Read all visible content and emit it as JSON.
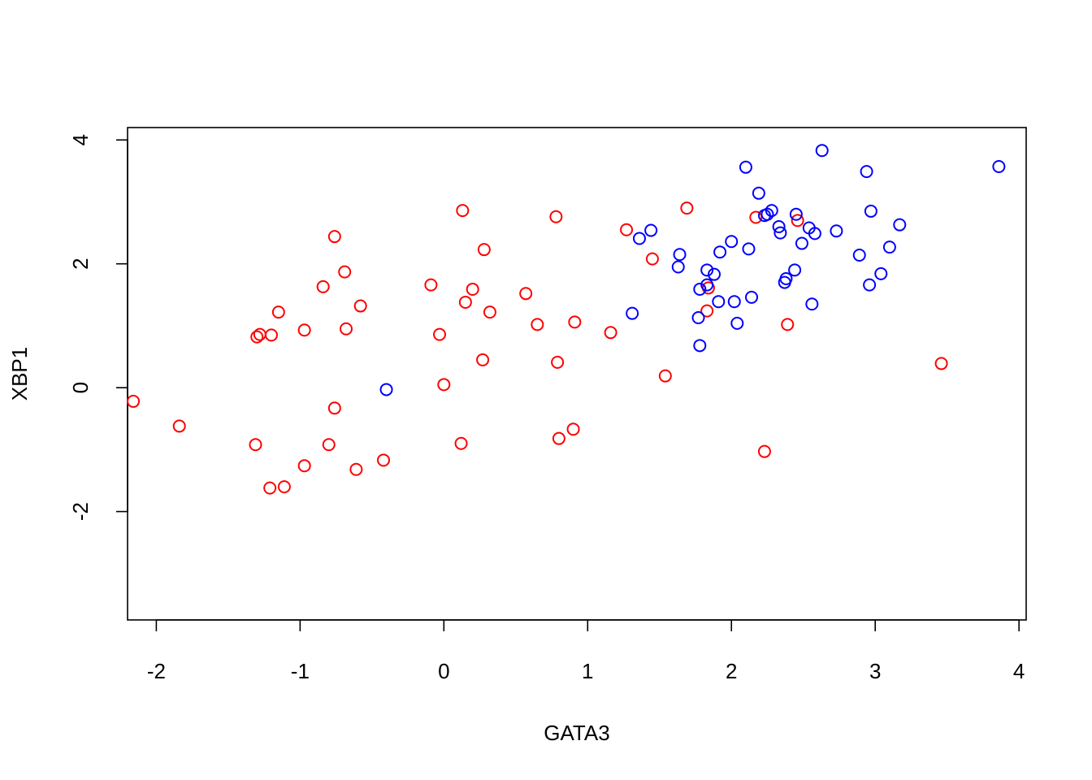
{
  "chart_data": {
    "type": "scatter",
    "title": "",
    "xlabel": "GATA3",
    "ylabel": "XBP1",
    "xlim": [
      -2.2,
      4.05
    ],
    "ylim": [
      -3.75,
      4.2
    ],
    "x_ticks": [
      -2,
      -1,
      0,
      1,
      2,
      3,
      4
    ],
    "y_ticks": [
      -2,
      0,
      2,
      4
    ],
    "grid": false,
    "legend": "none",
    "colors": {
      "red": "#ff0000",
      "blue": "#0000ff"
    },
    "series": [
      {
        "color": "#ff0000",
        "points": [
          [
            -2.16,
            -0.22
          ],
          [
            -1.84,
            -0.62
          ],
          [
            -1.31,
            -0.92
          ],
          [
            -1.3,
            0.82
          ],
          [
            -1.28,
            0.86
          ],
          [
            -1.21,
            -1.62
          ],
          [
            -1.2,
            0.85
          ],
          [
            -1.15,
            1.22
          ],
          [
            -1.11,
            -1.6
          ],
          [
            -0.97,
            0.93
          ],
          [
            -0.97,
            -1.26
          ],
          [
            -0.84,
            1.63
          ],
          [
            -0.8,
            -0.92
          ],
          [
            -0.76,
            2.44
          ],
          [
            -0.76,
            -0.33
          ],
          [
            -0.69,
            1.87
          ],
          [
            -0.68,
            0.95
          ],
          [
            -0.61,
            -1.32
          ],
          [
            -0.58,
            1.32
          ],
          [
            -0.42,
            -1.17
          ],
          [
            -0.09,
            1.66
          ],
          [
            -0.03,
            0.86
          ],
          [
            0.0,
            0.05
          ],
          [
            0.12,
            -0.9
          ],
          [
            0.13,
            2.86
          ],
          [
            0.15,
            1.38
          ],
          [
            0.2,
            1.59
          ],
          [
            0.27,
            0.45
          ],
          [
            0.28,
            2.23
          ],
          [
            0.32,
            1.22
          ],
          [
            0.57,
            1.52
          ],
          [
            0.65,
            1.02
          ],
          [
            0.78,
            2.76
          ],
          [
            0.79,
            0.41
          ],
          [
            0.8,
            -0.82
          ],
          [
            0.9,
            -0.67
          ],
          [
            0.91,
            1.06
          ],
          [
            1.16,
            0.89
          ],
          [
            1.27,
            2.55
          ],
          [
            1.45,
            2.08
          ],
          [
            1.54,
            0.19
          ],
          [
            1.69,
            2.9
          ],
          [
            1.83,
            1.24
          ],
          [
            1.84,
            1.61
          ],
          [
            2.17,
            2.75
          ],
          [
            2.23,
            -1.03
          ],
          [
            2.39,
            1.02
          ],
          [
            2.46,
            2.7
          ],
          [
            3.46,
            0.39
          ]
        ]
      },
      {
        "color": "#0000ff",
        "points": [
          [
            -0.4,
            -0.03
          ],
          [
            1.31,
            1.2
          ],
          [
            1.36,
            2.41
          ],
          [
            1.44,
            2.54
          ],
          [
            1.63,
            1.95
          ],
          [
            1.64,
            2.15
          ],
          [
            1.77,
            1.13
          ],
          [
            1.78,
            1.59
          ],
          [
            1.78,
            0.68
          ],
          [
            1.83,
            1.66
          ],
          [
            1.83,
            1.9
          ],
          [
            1.88,
            1.83
          ],
          [
            1.91,
            1.39
          ],
          [
            1.92,
            2.19
          ],
          [
            2.0,
            2.36
          ],
          [
            2.02,
            1.39
          ],
          [
            2.04,
            1.04
          ],
          [
            2.1,
            3.56
          ],
          [
            2.12,
            2.24
          ],
          [
            2.14,
            1.46
          ],
          [
            2.19,
            3.14
          ],
          [
            2.23,
            2.78
          ],
          [
            2.25,
            2.8
          ],
          [
            2.28,
            2.86
          ],
          [
            2.33,
            2.6
          ],
          [
            2.34,
            2.5
          ],
          [
            2.37,
            1.7
          ],
          [
            2.38,
            1.76
          ],
          [
            2.44,
            1.9
          ],
          [
            2.45,
            2.8
          ],
          [
            2.49,
            2.33
          ],
          [
            2.54,
            2.58
          ],
          [
            2.56,
            1.35
          ],
          [
            2.58,
            2.49
          ],
          [
            2.63,
            3.83
          ],
          [
            2.73,
            2.53
          ],
          [
            2.89,
            2.14
          ],
          [
            2.94,
            3.49
          ],
          [
            2.96,
            1.66
          ],
          [
            2.97,
            2.85
          ],
          [
            3.04,
            1.84
          ],
          [
            3.1,
            2.27
          ],
          [
            3.17,
            2.63
          ],
          [
            3.86,
            3.57
          ]
        ]
      }
    ]
  }
}
